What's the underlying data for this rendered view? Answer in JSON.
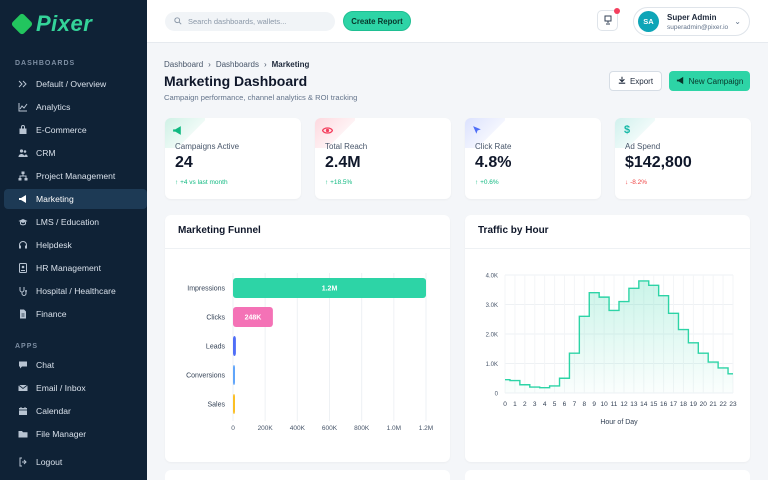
{
  "brand": {
    "name": "Pixer"
  },
  "sidebar": {
    "section_dashboards": "DASHBOARDS",
    "section_apps": "APPS",
    "dashboards": [
      {
        "label": "Default / Overview",
        "icon": "double-chevron-icon"
      },
      {
        "label": "Analytics",
        "icon": "chart-line-icon"
      },
      {
        "label": "E-Commerce",
        "icon": "bag-icon"
      },
      {
        "label": "CRM",
        "icon": "users-icon"
      },
      {
        "label": "Project Management",
        "icon": "diagram-icon"
      },
      {
        "label": "Marketing",
        "icon": "megaphone-icon",
        "active": true
      },
      {
        "label": "LMS / Education",
        "icon": "graduation-icon"
      },
      {
        "label": "Helpdesk",
        "icon": "headset-icon"
      },
      {
        "label": "HR Management",
        "icon": "id-card-icon"
      },
      {
        "label": "Hospital / Healthcare",
        "icon": "stethoscope-icon"
      },
      {
        "label": "Finance",
        "icon": "file-invoice-icon"
      }
    ],
    "apps": [
      {
        "label": "Chat",
        "icon": "chat-icon"
      },
      {
        "label": "Email / Inbox",
        "icon": "envelope-icon"
      },
      {
        "label": "Calendar",
        "icon": "calendar-icon"
      },
      {
        "label": "File Manager",
        "icon": "folder-icon"
      }
    ],
    "logout": "Logout"
  },
  "topbar": {
    "search_placeholder": "Search dashboards, wallets...",
    "create_report": "Create Report",
    "user": {
      "initials": "SA",
      "name": "Super Admin",
      "email": "superadmin@pixer.io"
    }
  },
  "page": {
    "breadcrumbs": [
      "Dashboard",
      "Dashboards",
      "Marketing"
    ],
    "title": "Marketing Dashboard",
    "subtitle": "Campaign performance, channel analytics & ROI tracking",
    "export_label": "Export",
    "new_campaign_label": "New Campaign"
  },
  "kpis": [
    {
      "label": "Campaigns Active",
      "value": "24",
      "trend": "+4 vs last month",
      "direction": "up",
      "icon": "megaphone-icon",
      "color": "#10b981"
    },
    {
      "label": "Total Reach",
      "value": "2.4M",
      "trend": "+18.5%",
      "direction": "up",
      "icon": "eye-icon",
      "color": "#f43f5e"
    },
    {
      "label": "Click Rate",
      "value": "4.8%",
      "trend": "+0.6%",
      "direction": "up",
      "icon": "cursor-icon",
      "color": "#4f6ef7"
    },
    {
      "label": "Ad Spend",
      "value": "$142,800",
      "trend": "-8.2%",
      "direction": "down",
      "icon": "dollar-icon",
      "color": "#14b8a6"
    }
  ],
  "funnel_card": {
    "title": "Marketing Funnel"
  },
  "traffic_card": {
    "title": "Traffic by Hour"
  },
  "chart_data": [
    {
      "type": "bar",
      "orientation": "horizontal",
      "categories": [
        "Impressions",
        "Clicks",
        "Leads",
        "Conversions",
        "Sales"
      ],
      "values": [
        1200000,
        248000,
        18000,
        4000,
        1500
      ],
      "data_labels": [
        "1.2M",
        "248K",
        "",
        "",
        ""
      ],
      "colors": [
        "#2dd4a6",
        "#f472b6",
        "#4f6ef7",
        "#60a5fa",
        "#fbbf24"
      ],
      "xlim": [
        0,
        1200000
      ],
      "xticks": [
        "0",
        "200K",
        "400K",
        "600K",
        "800K",
        "1.0M",
        "1.2M"
      ],
      "grid": true
    },
    {
      "type": "area",
      "step": true,
      "x": [
        0,
        1,
        2,
        3,
        4,
        5,
        6,
        7,
        8,
        9,
        10,
        11,
        12,
        13,
        14,
        15,
        16,
        17,
        18,
        19,
        20,
        21,
        22,
        23
      ],
      "values": [
        450,
        420,
        280,
        200,
        180,
        240,
        500,
        1350,
        2600,
        3400,
        3250,
        2800,
        3100,
        3550,
        3800,
        3650,
        3300,
        2700,
        2150,
        1700,
        1350,
        1050,
        850,
        650
      ],
      "ylim": [
        0,
        4000
      ],
      "yticks": [
        "0",
        "1.0K",
        "2.0K",
        "3.0K",
        "4.0K"
      ],
      "xlabel": "Hour of Day",
      "color": "#2dd4a6",
      "grid": true
    }
  ]
}
